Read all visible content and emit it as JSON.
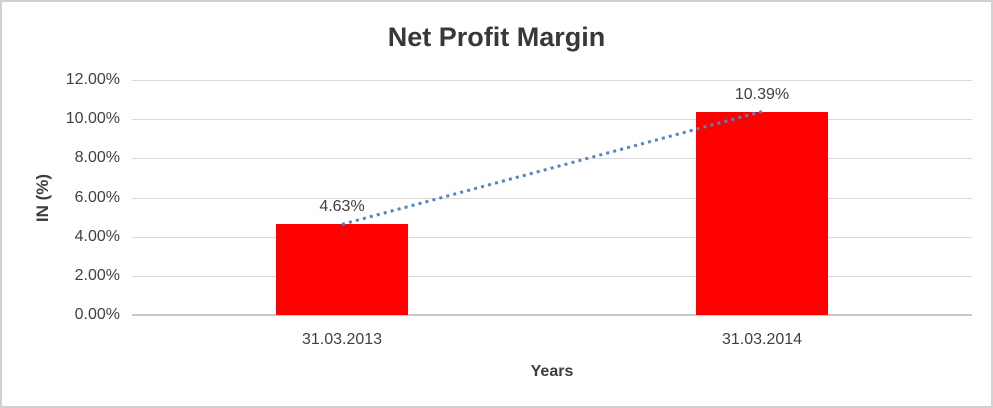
{
  "chart_data": {
    "type": "bar",
    "title": "Net Profit Margin",
    "categories": [
      "31.03.2013",
      "31.03.2014"
    ],
    "values": [
      4.63,
      10.39
    ],
    "data_labels": [
      "4.63%",
      "10.39%"
    ],
    "xlabel": "Years",
    "ylabel": "IN (%)",
    "ylim": [
      0,
      12
    ],
    "ytick_step": 2,
    "ytick_labels": [
      "0.00%",
      "2.00%",
      "4.00%",
      "6.00%",
      "8.00%",
      "10.00%",
      "12.00%"
    ],
    "grid": true,
    "legend": "none",
    "bar_color": "#FF0000",
    "trendline": {
      "style": "dotted",
      "color": "#4E87C7"
    },
    "colors": {
      "title_text": "#383838",
      "tick_text": "#404040",
      "gridline": "#D9D9D9",
      "axis_line": "#C9C9C9",
      "frame_border": "#D2D2D2"
    }
  }
}
